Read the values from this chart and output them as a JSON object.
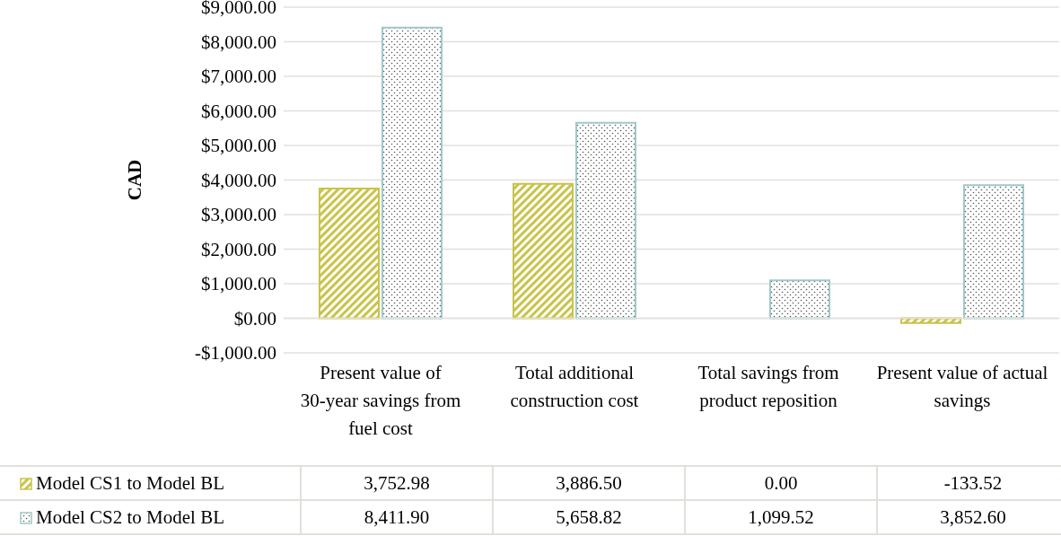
{
  "chart_data": {
    "type": "bar",
    "ylabel": "CAD",
    "categories": [
      "Present value of 30-year savings from fuel cost",
      "Total additional construction cost",
      "Total savings from product reposition",
      "Present value of actual savings"
    ],
    "series": [
      {
        "name": "Model CS1 to Model BL",
        "color": "#c9c34a",
        "values": [
          3752.98,
          3886.5,
          0,
          -133.52
        ],
        "value_labels": [
          "3,752.98",
          "3,886.50",
          "0.00",
          "-133.52"
        ]
      },
      {
        "name": "Model CS2 to Model BL",
        "color": "#9ec9c9",
        "values": [
          8411.9,
          5658.82,
          1099.52,
          3852.6
        ],
        "value_labels": [
          "8,411.90",
          "5,658.82",
          "1,099.52",
          "3,852.60"
        ]
      }
    ],
    "ylim": [
      -1000,
      9000
    ],
    "yticks": [
      {
        "value": -1000,
        "label": "-$1,000.00"
      },
      {
        "value": 0,
        "label": "$0.00"
      },
      {
        "value": 1000,
        "label": "$1,000.00"
      },
      {
        "value": 2000,
        "label": "$2,000.00"
      },
      {
        "value": 3000,
        "label": "$3,000.00"
      },
      {
        "value": 4000,
        "label": "$4,000.00"
      },
      {
        "value": 5000,
        "label": "$5,000.00"
      },
      {
        "value": 6000,
        "label": "$6,000.00"
      },
      {
        "value": 7000,
        "label": "$7,000.00"
      },
      {
        "value": 8000,
        "label": "$8,000.00"
      },
      {
        "value": 9000,
        "label": "$9,000.00"
      }
    ],
    "grid": "y",
    "legend": "bottom left"
  }
}
